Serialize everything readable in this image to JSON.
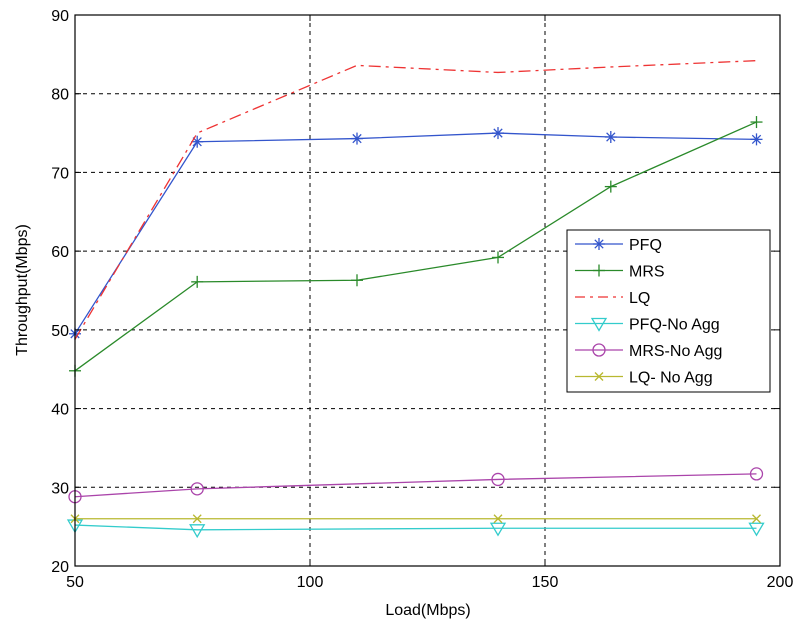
{
  "chart_data": {
    "type": "line",
    "title": "",
    "xlabel": "Load(Mbps)",
    "ylabel": "Throughput(Mbps)",
    "xlim": [
      50,
      200
    ],
    "ylim": [
      20,
      90
    ],
    "xticks": [
      50,
      100,
      150,
      200
    ],
    "yticks": [
      20,
      30,
      40,
      50,
      60,
      70,
      80,
      90
    ],
    "grid": true,
    "legend_position": "center-right",
    "series": [
      {
        "name": "PFQ",
        "color": "#3355cc",
        "marker": "asterisk",
        "dash": "solid",
        "x": [
          50,
          76,
          110,
          140,
          164,
          195
        ],
        "y": [
          49.5,
          73.9,
          74.3,
          75.0,
          74.5,
          74.2
        ]
      },
      {
        "name": "MRS",
        "color": "#2a8a2a",
        "marker": "plus",
        "dash": "solid",
        "x": [
          50,
          76,
          110,
          140,
          164,
          195
        ],
        "y": [
          44.8,
          56.1,
          56.3,
          59.2,
          68.2,
          76.4
        ]
      },
      {
        "name": "LQ",
        "color": "#ee3333",
        "marker": "none",
        "dash": "dashdot",
        "x": [
          50,
          76,
          110,
          140,
          164,
          195
        ],
        "y": [
          48.8,
          75.0,
          83.6,
          82.7,
          83.4,
          84.2
        ]
      },
      {
        "name": "PFQ-No Agg",
        "color": "#33cccc",
        "marker": "triangle-down",
        "dash": "solid",
        "x": [
          50,
          76,
          140,
          195
        ],
        "y": [
          25.2,
          24.6,
          24.8,
          24.8
        ]
      },
      {
        "name": "MRS-No Agg",
        "color": "#aa44aa",
        "marker": "circle",
        "dash": "solid",
        "x": [
          50,
          76,
          140,
          195
        ],
        "y": [
          28.8,
          29.8,
          31.0,
          31.7
        ]
      },
      {
        "name": "LQ- No Agg",
        "color": "#b8b830",
        "marker": "x",
        "dash": "solid",
        "x": [
          50,
          76,
          140,
          195
        ],
        "y": [
          26.0,
          26.0,
          26.0,
          26.0
        ]
      }
    ]
  }
}
